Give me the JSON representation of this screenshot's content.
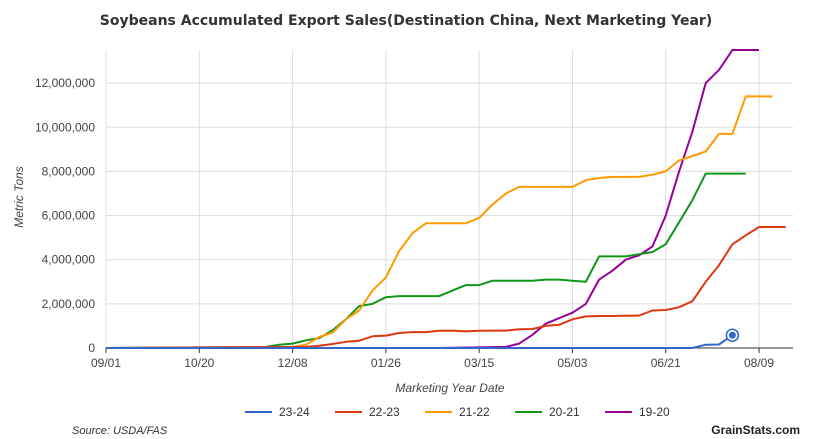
{
  "chart_data": {
    "type": "line",
    "title": "Soybeans Accumulated Export Sales(Destination China, Next Marketing Year)",
    "xlabel": "Marketing Year Date",
    "ylabel": "Metric Tons",
    "x_ticks": [
      "09/01",
      "10/20",
      "12/08",
      "01/26",
      "03/15",
      "05/03",
      "06/21",
      "08/09"
    ],
    "ylim": [
      0,
      13500000
    ],
    "y_ticks": [
      0,
      2000000,
      4000000,
      6000000,
      8000000,
      10000000,
      12000000
    ],
    "y_tick_labels": [
      "0",
      "2,000,000",
      "4,000,000",
      "6,000,000",
      "8,000,000",
      "10,000,000",
      "12,000,000"
    ],
    "grid": true,
    "legend": "bottom",
    "x_unit": "weeks since 09/01",
    "series": [
      {
        "name": "23-24",
        "color": "#3366cc",
        "x": [
          0,
          10,
          20,
          30,
          40,
          44,
          45,
          46,
          47
        ],
        "values": [
          0,
          0,
          0,
          0,
          0,
          0,
          150000,
          160000,
          580000
        ],
        "highlight_last": true
      },
      {
        "name": "22-23",
        "color": "#dc3912",
        "x": [
          0,
          15,
          16,
          17,
          18,
          19,
          20,
          21,
          22,
          23,
          24,
          25,
          26,
          27,
          28,
          29,
          30,
          31,
          32,
          33,
          34,
          35,
          36,
          37,
          38,
          39,
          40,
          41,
          42,
          43,
          44,
          45,
          46,
          47,
          48,
          49,
          50,
          51
        ],
        "values": [
          0,
          50000,
          100000,
          180000,
          280000,
          330000,
          530000,
          560000,
          680000,
          720000,
          720000,
          780000,
          790000,
          750000,
          780000,
          790000,
          790000,
          850000,
          860000,
          1000000,
          1050000,
          1300000,
          1430000,
          1450000,
          1450000,
          1460000,
          1470000,
          1700000,
          1720000,
          1850000,
          2120000,
          3000000,
          3750000,
          4700000,
          5100000,
          5480000,
          5480000,
          5480000
        ]
      },
      {
        "name": "21-22",
        "color": "#ff9900",
        "x": [
          0,
          14,
          15,
          16,
          17,
          18,
          19,
          20,
          21,
          22,
          23,
          24,
          25,
          26,
          27,
          28,
          29,
          30,
          31,
          32,
          33,
          34,
          35,
          36,
          37,
          38,
          39,
          40,
          41,
          42,
          43,
          44,
          45,
          46,
          47,
          48,
          49,
          50
        ],
        "values": [
          0,
          50000,
          150000,
          500000,
          700000,
          1300000,
          1700000,
          2600000,
          3200000,
          4400000,
          5200000,
          5650000,
          5650000,
          5650000,
          5650000,
          5900000,
          6500000,
          7000000,
          7300000,
          7300000,
          7300000,
          7300000,
          7300000,
          7600000,
          7700000,
          7750000,
          7750000,
          7750000,
          7850000,
          8000000,
          8500000,
          8700000,
          8900000,
          9700000,
          9700000,
          11400000,
          11400000,
          11400000
        ]
      },
      {
        "name": "20-21",
        "color": "#109618",
        "x": [
          0,
          12,
          13,
          14,
          15,
          16,
          17,
          18,
          19,
          20,
          21,
          22,
          23,
          24,
          25,
          26,
          27,
          28,
          29,
          30,
          31,
          32,
          33,
          34,
          35,
          36,
          37,
          38,
          39,
          40,
          41,
          42,
          43,
          44,
          45,
          46,
          47,
          48
        ],
        "values": [
          0,
          50000,
          150000,
          200000,
          350000,
          450000,
          800000,
          1300000,
          1900000,
          2000000,
          2300000,
          2350000,
          2350000,
          2350000,
          2350000,
          2600000,
          2850000,
          2850000,
          3050000,
          3050000,
          3050000,
          3050000,
          3100000,
          3100000,
          3050000,
          3000000,
          4150000,
          4150000,
          4150000,
          4250000,
          4350000,
          4700000,
          5700000,
          6700000,
          7900000,
          7900000,
          7900000,
          7900000
        ]
      },
      {
        "name": "19-20",
        "color": "#990099",
        "x": [
          0,
          20,
          25,
          30,
          31,
          32,
          33,
          34,
          35,
          36,
          37,
          38,
          39,
          40,
          41,
          42,
          43,
          44,
          45,
          46,
          47,
          48,
          49
        ],
        "values": [
          0,
          0,
          0,
          50000,
          200000,
          600000,
          1100000,
          1350000,
          1600000,
          2000000,
          3100000,
          3500000,
          4000000,
          4200000,
          4600000,
          6000000,
          8000000,
          9800000,
          12000000,
          12600000,
          13500000,
          13500000,
          13500000
        ]
      }
    ]
  },
  "source": "Source: USDA/FAS",
  "brand": "GrainStats.com"
}
